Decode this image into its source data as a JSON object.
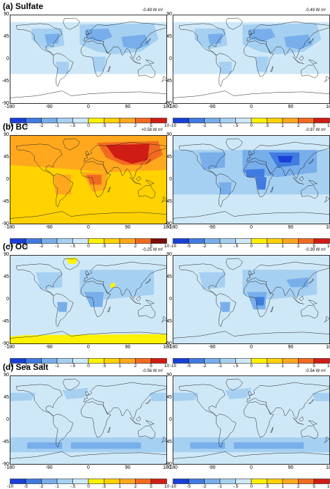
{
  "figure": {
    "colorbar_levels": [
      "-10",
      "-5",
      "-2",
      "-1",
      "-.5",
      "0",
      ".5",
      "1",
      "2",
      "5",
      "10"
    ],
    "colorbar_colors": [
      "#1a3fd6",
      "#3f7be0",
      "#78aeea",
      "#a6d0f1",
      "#cfe8f8",
      "#fff200",
      "#ffd200",
      "#ffa81e",
      "#f26a20",
      "#cf1c14"
    ],
    "colorbar_colors_alt": [
      "#1a3fd6",
      "#3f7be0",
      "#78aeea",
      "#a6d0f1",
      "#cfe8f8",
      "#fff200",
      "#ffd200",
      "#ffa81e",
      "#f26a20",
      "#7a0c0c"
    ],
    "y_ticks": [
      "90",
      "45",
      "0",
      "-45",
      "-90"
    ],
    "x_ticks": [
      "-180",
      "-90",
      "0",
      "90",
      "180"
    ]
  },
  "panels": [
    {
      "id": "sulfate",
      "title": "(a) Sulfate",
      "left_forcing": "-0.49 W m²",
      "right_forcing": "-0.49 W m²",
      "left_field": "sulfate",
      "right_field": "sulfate"
    },
    {
      "id": "bc",
      "title": "(b) BC",
      "left_forcing": "+0.58 W m²",
      "right_forcing": "-0.97 W m²",
      "left_field": "bc_warm",
      "right_field": "bc_cool"
    },
    {
      "id": "oc",
      "title": "(c) OC",
      "left_forcing": "-0.25 W m²",
      "right_forcing": "-0.39 W m²",
      "left_field": "oc_left",
      "right_field": "oc_right"
    },
    {
      "id": "seasalt",
      "title": "(d) Sea Salt",
      "left_forcing": "-0.56 W m²",
      "right_forcing": "-0.54 W m²",
      "left_field": "seasalt",
      "right_field": "seasalt"
    }
  ]
}
